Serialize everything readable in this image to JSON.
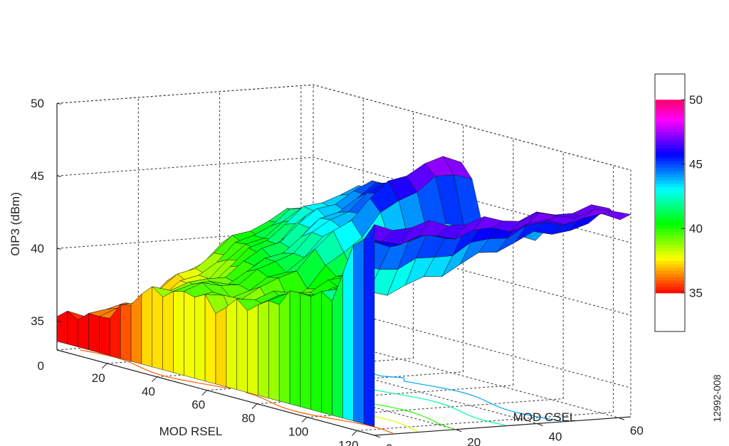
{
  "chart_data": {
    "type": "surface",
    "title": "",
    "xlabel": "MOD RSEL",
    "ylabel": "MOD CSEL",
    "zlabel": "OIP3 (dBm)",
    "xlim": [
      0,
      127
    ],
    "ylim": [
      0,
      63
    ],
    "zlim": [
      33,
      50
    ],
    "x_ticks": [
      "0",
      "20",
      "40",
      "60",
      "80",
      "100",
      "120"
    ],
    "y_ticks": [
      "0",
      "20",
      "40",
      "60"
    ],
    "z_ticks": [
      "35",
      "40",
      "45",
      "50"
    ],
    "colorbar": {
      "range": [
        35,
        50
      ],
      "ticks": [
        "35",
        "40",
        "45",
        "50"
      ],
      "colormap": "hsv"
    },
    "grid": true,
    "contour_floor": true,
    "surface_profile": {
      "x": [
        0,
        10,
        20,
        28,
        32,
        40,
        50,
        58,
        62,
        70,
        80,
        90,
        95,
        100,
        110,
        120,
        127
      ],
      "low_csel_oip3": [
        35,
        36,
        36.5,
        37,
        38,
        39,
        39.5,
        39.5,
        38,
        39.5,
        40,
        40.5,
        41,
        41.5,
        42,
        46,
        47
      ],
      "high_csel_oip3": [
        41,
        42,
        43,
        44,
        44.5,
        45,
        46,
        47,
        48,
        42,
        43,
        44,
        44.5,
        45,
        45.5,
        47,
        47
      ]
    }
  },
  "figure_id": "12992-008"
}
